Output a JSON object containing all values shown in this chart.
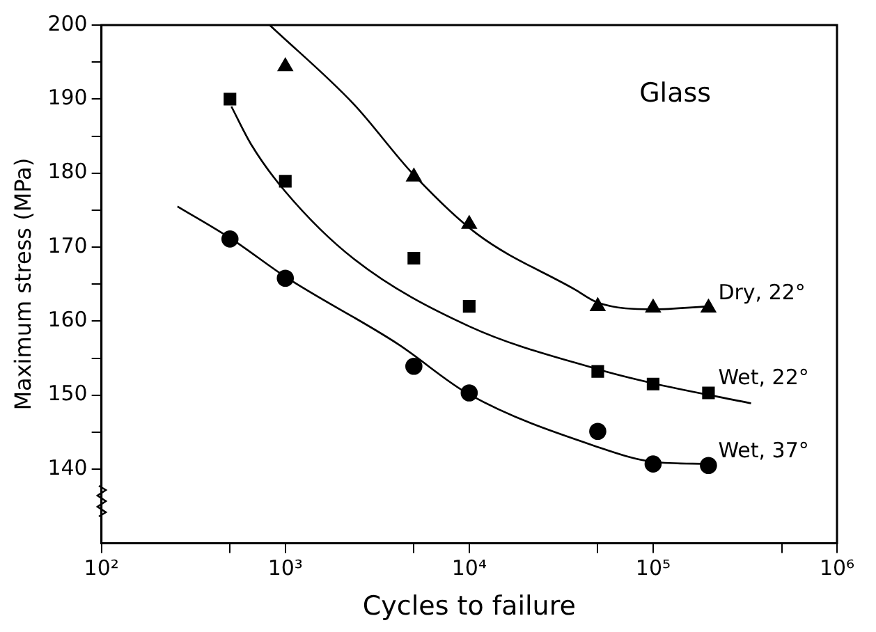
{
  "chart_data": {
    "type": "scatter",
    "xlabel": "Cycles to failure",
    "ylabel": "Maximum stress (MPa)",
    "log": "x",
    "grid": false,
    "xlim": [
      100,
      1000000
    ],
    "xticks": [
      {
        "value": 100,
        "label": "10²"
      },
      {
        "value": 500,
        "label": null
      },
      {
        "value": 1000,
        "label": "10³"
      },
      {
        "value": 5000,
        "label": null
      },
      {
        "value": 10000,
        "label": "10⁴"
      },
      {
        "value": 50000,
        "label": null
      },
      {
        "value": 100000,
        "label": "10⁵"
      },
      {
        "value": 500000,
        "label": null
      },
      {
        "value": 1000000,
        "label": "10⁶"
      }
    ],
    "ylim": [
      130,
      200
    ],
    "yticks": [
      140,
      {
        "value": 145,
        "label": null
      },
      150,
      {
        "value": 155,
        "label": null
      },
      160,
      {
        "value": 165,
        "label": null
      },
      170,
      {
        "value": 175,
        "label": null
      },
      180,
      {
        "value": 185,
        "label": null
      },
      190,
      {
        "value": 195,
        "label": null
      },
      200
    ],
    "annotations": [
      "Glass"
    ],
    "series": [
      {
        "name": "Dry, 22°",
        "color": "#000000",
        "marker": "triangle",
        "x": [
          1000,
          5000,
          10000,
          50000,
          100000,
          200000
        ],
        "values": [
          194.4,
          179.5,
          173.1,
          162,
          161.8,
          161.8
        ]
      },
      {
        "name": "Wet, 22°",
        "color": "#000000",
        "marker": "square",
        "x": [
          500,
          1000,
          5000,
          10000,
          50000,
          100000,
          200000
        ],
        "values": [
          190,
          178.9,
          168.5,
          162,
          153.2,
          151.5,
          150.3
        ]
      },
      {
        "name": "Wet, 37°",
        "color": "#000000",
        "marker": "circle",
        "x": [
          500,
          1000,
          5000,
          10000,
          50000,
          100000,
          200000
        ],
        "values": [
          171.1,
          165.8,
          153.9,
          150.3,
          145.1,
          140.7,
          140.5
        ]
      },
      {
        "type": "line",
        "color": "#000000",
        "marker": "none",
        "x": [
          822,
          2360,
          4940,
          11000,
          37400,
          50000,
          100000,
          200000
        ],
        "values": [
          200,
          189.3,
          179.9,
          171.8,
          164.3,
          162.5,
          161.6,
          162
        ]
      },
      {
        "type": "line",
        "color": "#000000",
        "marker": "none",
        "x": [
          509,
          651,
          1000,
          2360,
          10000,
          50000,
          100000,
          341000
        ],
        "values": [
          189,
          183.9,
          177.5,
          168.4,
          159.3,
          153.5,
          151.6,
          148.9
        ]
      },
      {
        "type": "line",
        "color": "#000000",
        "marker": "none",
        "x": [
          259,
          510,
          1000,
          4100,
          10000,
          50000,
          100000,
          200000
        ],
        "values": [
          175.5,
          171.1,
          166,
          156.9,
          150.1,
          143,
          141,
          140.7
        ]
      }
    ]
  }
}
